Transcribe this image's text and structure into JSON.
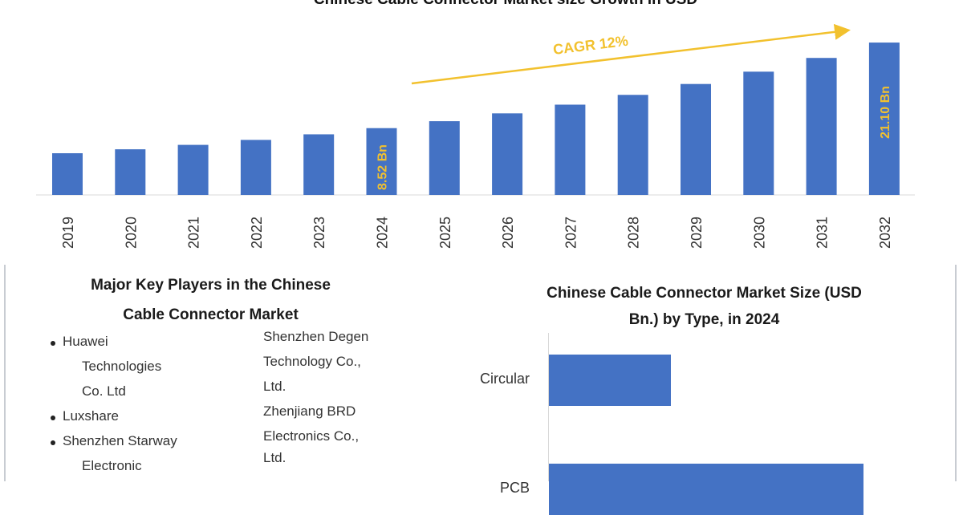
{
  "chart_data": [
    {
      "type": "bar",
      "title": "Chinese Cable Connector Market size Growth in USD",
      "categories": [
        "2019",
        "2020",
        "2021",
        "2022",
        "2023",
        "2024",
        "2025",
        "2026",
        "2027",
        "2028",
        "2029",
        "2030",
        "2031",
        "2032"
      ],
      "values": [
        4.83,
        5.41,
        6.06,
        6.79,
        7.61,
        8.52,
        9.54,
        10.69,
        11.97,
        13.41,
        15.01,
        16.82,
        18.84,
        21.1
      ],
      "data_labels": {
        "2024": "8.52 Bn",
        "2032": "21.10 Bn"
      },
      "annotation": "CAGR 12%",
      "bar_color": "#4472c4",
      "label_color": "#f2c12e",
      "grid": false
    },
    {
      "type": "bar",
      "orientation": "horizontal",
      "title": "Chinese Cable Connector Market Size (USD Bn.) by Type, in 2024",
      "categories": [
        "Circular",
        "PCB"
      ],
      "values": [
        1.52,
        3.92
      ],
      "bar_color": "#4472c4",
      "grid": false
    }
  ],
  "key_players": {
    "title_line1": "Major Key Players in the Chinese",
    "title_line2": "Cable Connector Market",
    "left_lines": [
      {
        "text": "Huawei",
        "bullet": true
      },
      {
        "text": "Technologies",
        "bullet": false
      },
      {
        "text": "Co. Ltd",
        "bullet": false
      },
      {
        "text": "Luxshare",
        "bullet": true
      },
      {
        "text": "Shenzhen Starway",
        "bullet": true
      },
      {
        "text": "Electronic",
        "bullet": false
      }
    ],
    "right_lines": [
      "Shenzhen Degen",
      "Technology Co.,",
      "Ltd.",
      "Zhenjiang BRD",
      "Electronics Co.,",
      "Ltd."
    ]
  },
  "side_chart_title_line1": "Chinese Cable Connector Market Size (USD",
  "side_chart_title_line2": "Bn.) by Type, in 2024"
}
